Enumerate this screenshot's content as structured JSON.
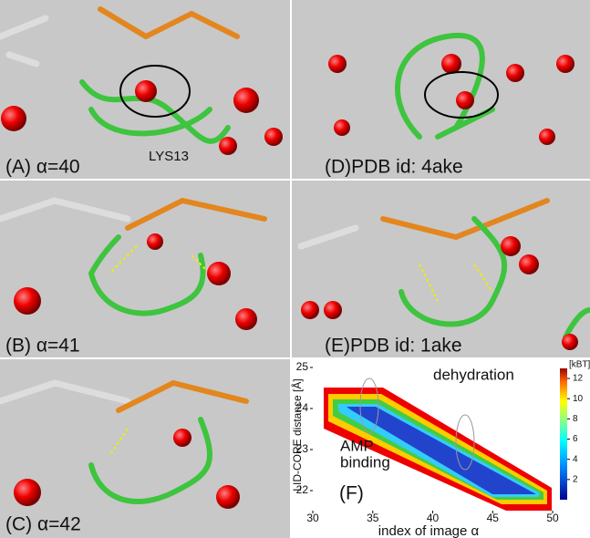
{
  "panels": {
    "a": {
      "label": "(A) α=40",
      "residue": "LYS13"
    },
    "d": {
      "label": "(D)PDB id: 4ake"
    },
    "b": {
      "label": "(B) α=41"
    },
    "e": {
      "label": "(E)PDB id: 1ake"
    },
    "c": {
      "label": "(C) α=42"
    }
  },
  "chart_data": {
    "type": "contour",
    "panel_label": "(F)",
    "xlabel": "index of image α",
    "ylabel": "LID-CORE distance [Å]",
    "colorbar_label": "[kBT]",
    "annotations": [
      "dehydration",
      "AMP",
      "binding"
    ],
    "xlim": [
      30,
      50
    ],
    "xticks": [
      30,
      35,
      40,
      45,
      50
    ],
    "ylim": [
      21.6,
      25.2
    ],
    "yticks": [
      22,
      23,
      24,
      25
    ],
    "colorbar_lim": [
      0,
      13
    ],
    "colorbar_ticks": [
      2,
      4,
      6,
      8,
      10,
      12
    ]
  }
}
